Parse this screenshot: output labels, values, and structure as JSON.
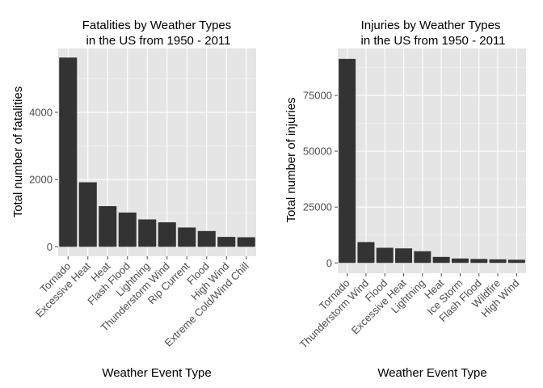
{
  "colors": {
    "panel_background": "#e5e5e5",
    "bar_fill": "#333333",
    "gridline": "#ffffff",
    "tick_label": "#4d4d4d"
  },
  "chart_data": [
    {
      "type": "bar",
      "title_lines": [
        "Fatalities by Weather Types",
        "in the US from 1950 - 2011"
      ],
      "xlabel": "Weather Event Type",
      "ylabel": "Total number of fatalities",
      "categories": [
        "Tornado",
        "Excessive Heat",
        "Heat",
        "Flash Flood",
        "Lightning",
        "Thunderstorm Wind",
        "Rip Current",
        "Flood",
        "High Wind",
        "Extreme Cold/Wind Chill"
      ],
      "values": [
        5630,
        1920,
        1210,
        1020,
        815,
        730,
        575,
        470,
        295,
        285
      ],
      "ylim": [
        -280,
        5900
      ],
      "yticks": [
        0,
        2000,
        4000
      ],
      "ytick_labels": [
        "0",
        "2000",
        "4000"
      ],
      "grid": true,
      "bar_color": "#333333"
    },
    {
      "type": "bar",
      "title_lines": [
        "Injuries by Weather Types",
        "in the US from 1950 - 2011"
      ],
      "xlabel": "Weather Event Type",
      "ylabel": "Total number of injuries",
      "categories": [
        "Tornado",
        "Thunderstorm Wind",
        "Flood",
        "Excessive Heat",
        "Lightning",
        "Heat",
        "Ice Storm",
        "Flash Flood",
        "Wildfire",
        "High Wind"
      ],
      "values": [
        91350,
        9350,
        6790,
        6520,
        5230,
        2700,
        1990,
        1780,
        1610,
        1440
      ],
      "ylim": [
        -4600,
        96000
      ],
      "yticks": [
        0,
        25000,
        50000,
        75000
      ],
      "ytick_labels": [
        "0",
        "25000",
        "50000",
        "75000"
      ],
      "grid": true,
      "bar_color": "#333333"
    }
  ]
}
